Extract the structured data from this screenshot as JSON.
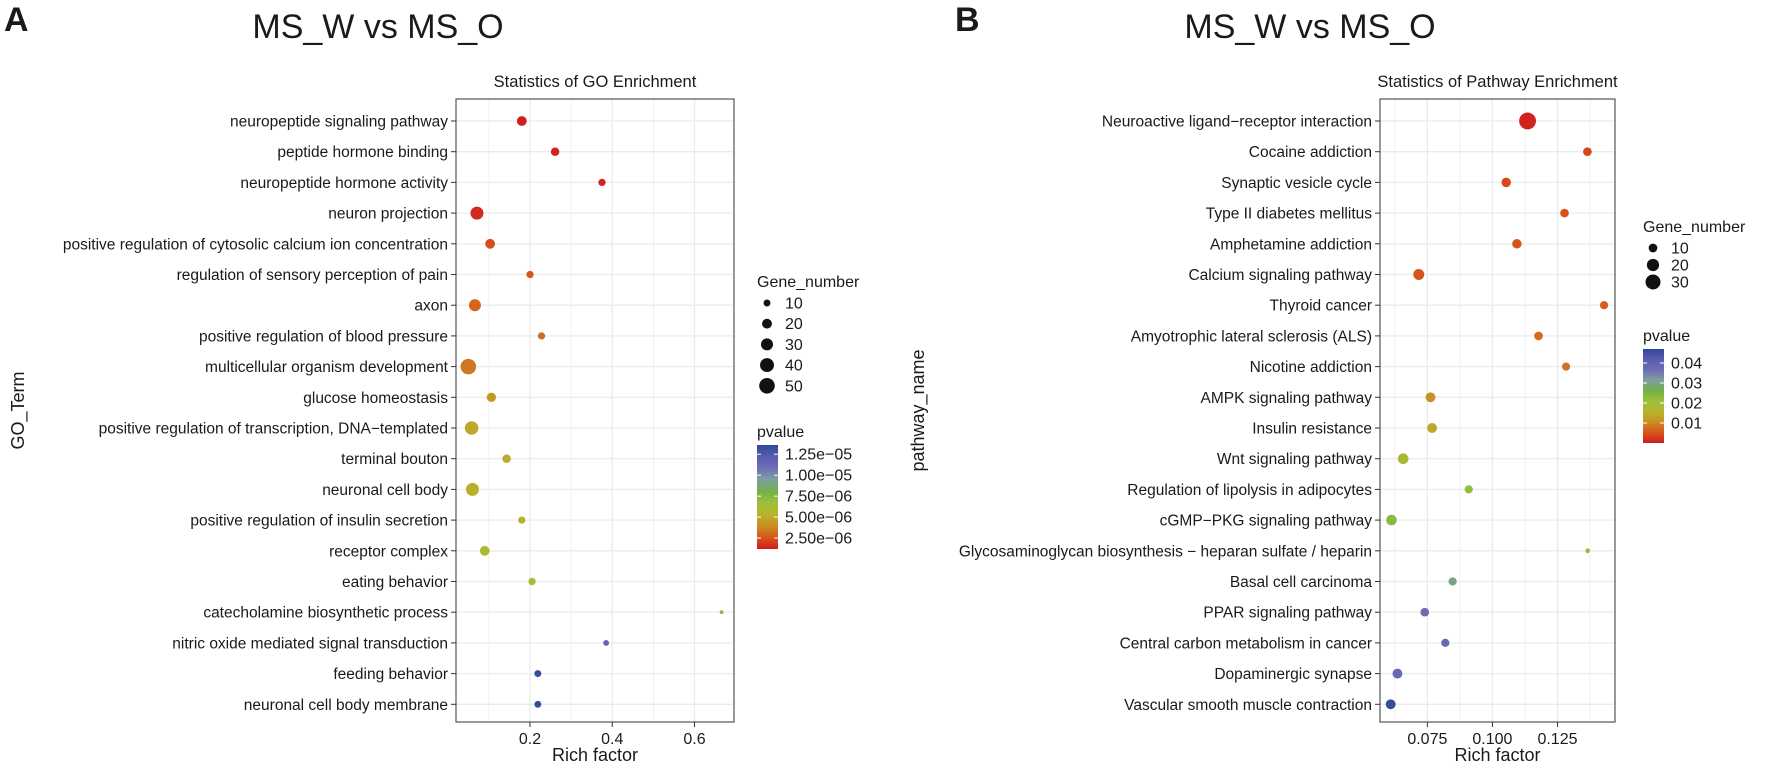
{
  "chart_data": [
    {
      "panel_letter": "A",
      "type": "scatter",
      "title": "MS_W vs MS_O",
      "subtitle": "Statistics of GO Enrichment",
      "xlabel": "Rich factor",
      "ylabel": "GO_Term",
      "xlim": [
        0.02,
        0.696
      ],
      "xticks": [
        0.2,
        0.4,
        0.6
      ],
      "xtick_labels": [
        "0.2",
        "0.4",
        "0.6"
      ],
      "grid": true,
      "size_legend": {
        "title": "Gene_number",
        "values": [
          10,
          20,
          30,
          40,
          50
        ],
        "labels": [
          "10",
          "20",
          "30",
          "40",
          "50"
        ]
      },
      "color_legend": {
        "title": "pvalue",
        "range": [
          1.2e-06,
          1.36e-05
        ],
        "ticks": [
          1.25e-05,
          1e-05,
          7.5e-06,
          5e-06,
          2.5e-06
        ],
        "labels": [
          "1.25e−05",
          "1.00e−05",
          "7.50e−06",
          "5.00e−06",
          "2.50e−06"
        ]
      },
      "legend_placement": "right",
      "points": [
        {
          "term": "neuropeptide signaling pathway",
          "rich_factor": 0.18,
          "gene_number": 20,
          "pvalue": 1.3e-06
        },
        {
          "term": "peptide hormone binding",
          "rich_factor": 0.261,
          "gene_number": 15,
          "pvalue": 1.4e-06
        },
        {
          "term": "neuropeptide hormone activity",
          "rich_factor": 0.375,
          "gene_number": 11,
          "pvalue": 1.4e-06
        },
        {
          "term": "neuron projection",
          "rich_factor": 0.071,
          "gene_number": 35,
          "pvalue": 1.5e-06
        },
        {
          "term": "positive regulation of cytosolic calcium ion concentration",
          "rich_factor": 0.103,
          "gene_number": 20,
          "pvalue": 2.4e-06
        },
        {
          "term": "regulation of sensory perception of pain",
          "rich_factor": 0.2,
          "gene_number": 11,
          "pvalue": 2.6e-06
        },
        {
          "term": "axon",
          "rich_factor": 0.066,
          "gene_number": 30,
          "pvalue": 3e-06
        },
        {
          "term": "positive regulation of blood pressure",
          "rich_factor": 0.228,
          "gene_number": 11,
          "pvalue": 3.1e-06
        },
        {
          "term": "multicellular organism development",
          "rich_factor": 0.05,
          "gene_number": 50,
          "pvalue": 3.4e-06
        },
        {
          "term": "glucose homeostasis",
          "rich_factor": 0.106,
          "gene_number": 18,
          "pvalue": 4.3e-06
        },
        {
          "term": "positive regulation of transcription, DNA−templated",
          "rich_factor": 0.058,
          "gene_number": 38,
          "pvalue": 4.9e-06
        },
        {
          "term": "terminal bouton",
          "rich_factor": 0.143,
          "gene_number": 15,
          "pvalue": 5e-06
        },
        {
          "term": "neuronal cell body",
          "rich_factor": 0.06,
          "gene_number": 35,
          "pvalue": 5.1e-06
        },
        {
          "term": "positive regulation of insulin secretion",
          "rich_factor": 0.18,
          "gene_number": 11,
          "pvalue": 5.6e-06
        },
        {
          "term": "receptor complex",
          "rich_factor": 0.09,
          "gene_number": 20,
          "pvalue": 5.9e-06
        },
        {
          "term": "eating behavior",
          "rich_factor": 0.205,
          "gene_number": 11,
          "pvalue": 6.6e-06
        },
        {
          "term": "catecholamine biosynthetic process",
          "rich_factor": 0.666,
          "gene_number": 3,
          "pvalue": 7.2e-06
        },
        {
          "term": "nitric oxide mediated signal transduction",
          "rich_factor": 0.385,
          "gene_number": 7,
          "pvalue": 1.15e-05
        },
        {
          "term": "feeding behavior",
          "rich_factor": 0.219,
          "gene_number": 10,
          "pvalue": 1.33e-05
        },
        {
          "term": "neuronal cell body membrane",
          "rich_factor": 0.219,
          "gene_number": 10,
          "pvalue": 1.33e-05
        }
      ]
    },
    {
      "panel_letter": "B",
      "type": "scatter",
      "title": "MS_W vs MS_O",
      "subtitle": "Statistics of Pathway Enrichment",
      "xlabel": "Rich factor",
      "ylabel": "pathway_name",
      "xlim": [
        0.0568,
        0.1471
      ],
      "xticks": [
        0.075,
        0.1,
        0.125
      ],
      "xtick_labels": [
        "0.075",
        "0.100",
        "0.125"
      ],
      "grid": true,
      "size_legend": {
        "title": "Gene_number",
        "values": [
          10,
          20,
          30
        ],
        "labels": [
          "10",
          "20",
          "30"
        ]
      },
      "color_legend": {
        "title": "pvalue",
        "range": [
          0.0,
          0.047
        ],
        "ticks": [
          0.04,
          0.03,
          0.02,
          0.01
        ],
        "labels": [
          "0.04",
          "0.03",
          "0.02",
          "0.01"
        ]
      },
      "legend_placement": "right",
      "points": [
        {
          "term": "Neuroactive ligand−receptor interaction",
          "rich_factor": 0.1135,
          "gene_number": 38,
          "pvalue": 0.0005
        },
        {
          "term": "Cocaine addiction",
          "rich_factor": 0.1365,
          "gene_number": 10,
          "pvalue": 0.004
        },
        {
          "term": "Synaptic vesicle cycle",
          "rich_factor": 0.1053,
          "gene_number": 12,
          "pvalue": 0.004
        },
        {
          "term": "Type II diabetes mellitus",
          "rich_factor": 0.1277,
          "gene_number": 10,
          "pvalue": 0.005
        },
        {
          "term": "Amphetamine addiction",
          "rich_factor": 0.1094,
          "gene_number": 12,
          "pvalue": 0.005
        },
        {
          "term": "Calcium signaling pathway",
          "rich_factor": 0.0717,
          "gene_number": 16,
          "pvalue": 0.005
        },
        {
          "term": "Thyroid cancer",
          "rich_factor": 0.1429,
          "gene_number": 9,
          "pvalue": 0.006
        },
        {
          "term": "Amyotrophic lateral sclerosis (ALS)",
          "rich_factor": 0.1177,
          "gene_number": 10,
          "pvalue": 0.007
        },
        {
          "term": "Nicotine addiction",
          "rich_factor": 0.1283,
          "gene_number": 9,
          "pvalue": 0.008
        },
        {
          "term": "AMPK signaling pathway",
          "rich_factor": 0.0762,
          "gene_number": 13,
          "pvalue": 0.011
        },
        {
          "term": "Insulin resistance",
          "rich_factor": 0.0768,
          "gene_number": 13,
          "pvalue": 0.014
        },
        {
          "term": "Wnt signaling pathway",
          "rich_factor": 0.0657,
          "gene_number": 15,
          "pvalue": 0.018
        },
        {
          "term": "Regulation of lipolysis in adipocytes",
          "rich_factor": 0.0909,
          "gene_number": 9,
          "pvalue": 0.022
        },
        {
          "term": "cGMP−PKG signaling pathway",
          "rich_factor": 0.0612,
          "gene_number": 15,
          "pvalue": 0.023
        },
        {
          "term": "Glycosaminoglycan biosynthesis − heparan sulfate / heparin",
          "rich_factor": 0.1366,
          "gene_number": 3,
          "pvalue": 0.022
        },
        {
          "term": "Basal cell carcinoma",
          "rich_factor": 0.0847,
          "gene_number": 9,
          "pvalue": 0.03
        },
        {
          "term": "PPAR signaling pathway",
          "rich_factor": 0.074,
          "gene_number": 10,
          "pvalue": 0.037
        },
        {
          "term": "Central carbon metabolism in cancer",
          "rich_factor": 0.0819,
          "gene_number": 9,
          "pvalue": 0.038
        },
        {
          "term": "Dopaminergic synapse",
          "rich_factor": 0.0635,
          "gene_number": 13,
          "pvalue": 0.038
        },
        {
          "term": "Vascular smooth muscle contraction",
          "rich_factor": 0.0609,
          "gene_number": 13,
          "pvalue": 0.046
        }
      ]
    }
  ],
  "colors": {
    "scale": [
      "#D01C1E",
      "#D6561C",
      "#CC8E24",
      "#B7B42C",
      "#9DC03A",
      "#72B04A",
      "#7F9F9E",
      "#6E6EB6",
      "#5A5BAE",
      "#2C4A9A"
    ],
    "grid": "#EBEBEB",
    "panel_border": "#555555"
  }
}
